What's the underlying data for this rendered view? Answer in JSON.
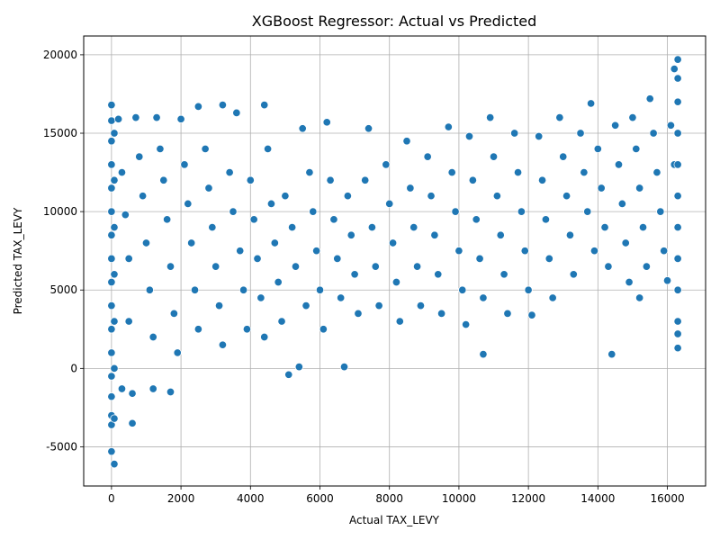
{
  "chart_data": {
    "type": "scatter",
    "title": "XGBoost Regressor: Actual vs Predicted",
    "xlabel": "Actual TAX_LEVY",
    "ylabel": "Predicted TAX_LEVY",
    "xlim": [
      -800,
      17100
    ],
    "ylim": [
      -7500,
      21200
    ],
    "xticks": [
      0,
      2000,
      4000,
      6000,
      8000,
      10000,
      12000,
      14000,
      16000
    ],
    "yticks": [
      -5000,
      0,
      5000,
      10000,
      15000,
      20000
    ],
    "grid": true,
    "marker_color": "#1f77b4",
    "marker_edge": "#ffffff",
    "points": [
      [
        0,
        -5300
      ],
      [
        0,
        -3600
      ],
      [
        0,
        -3000
      ],
      [
        0,
        -1800
      ],
      [
        0,
        -500
      ],
      [
        0,
        1000
      ],
      [
        0,
        2500
      ],
      [
        0,
        4000
      ],
      [
        0,
        5500
      ],
      [
        0,
        7000
      ],
      [
        0,
        8500
      ],
      [
        0,
        10000
      ],
      [
        0,
        11500
      ],
      [
        0,
        13000
      ],
      [
        0,
        14500
      ],
      [
        0,
        15800
      ],
      [
        0,
        16800
      ],
      [
        80,
        -3200
      ],
      [
        80,
        0
      ],
      [
        80,
        3000
      ],
      [
        80,
        6000
      ],
      [
        80,
        9000
      ],
      [
        80,
        12000
      ],
      [
        80,
        15000
      ],
      [
        80,
        -6100
      ],
      [
        300,
        -1300
      ],
      [
        600,
        -3500
      ],
      [
        600,
        -1600
      ],
      [
        1200,
        -1300
      ],
      [
        1700,
        -1500
      ],
      [
        200,
        15900
      ],
      [
        300,
        12500
      ],
      [
        400,
        9800
      ],
      [
        500,
        7000
      ],
      [
        500,
        3000
      ],
      [
        700,
        16000
      ],
      [
        800,
        13500
      ],
      [
        900,
        11000
      ],
      [
        1000,
        8000
      ],
      [
        1100,
        5000
      ],
      [
        1200,
        2000
      ],
      [
        1300,
        16000
      ],
      [
        1400,
        14000
      ],
      [
        1500,
        12000
      ],
      [
        1600,
        9500
      ],
      [
        1700,
        6500
      ],
      [
        1800,
        3500
      ],
      [
        1900,
        1000
      ],
      [
        2000,
        15900
      ],
      [
        2100,
        13000
      ],
      [
        2200,
        10500
      ],
      [
        2300,
        8000
      ],
      [
        2400,
        5000
      ],
      [
        2500,
        2500
      ],
      [
        2500,
        16700
      ],
      [
        2700,
        14000
      ],
      [
        2800,
        11500
      ],
      [
        2900,
        9000
      ],
      [
        3000,
        6500
      ],
      [
        3100,
        4000
      ],
      [
        3200,
        1500
      ],
      [
        3200,
        16800
      ],
      [
        3400,
        12500
      ],
      [
        3500,
        10000
      ],
      [
        3600,
        16300
      ],
      [
        3700,
        7500
      ],
      [
        3800,
        5000
      ],
      [
        3900,
        2500
      ],
      [
        4000,
        12000
      ],
      [
        4100,
        9500
      ],
      [
        4200,
        7000
      ],
      [
        4300,
        4500
      ],
      [
        4400,
        2000
      ],
      [
        4400,
        16800
      ],
      [
        4500,
        14000
      ],
      [
        4600,
        10500
      ],
      [
        4700,
        8000
      ],
      [
        4800,
        5500
      ],
      [
        4900,
        3000
      ],
      [
        5000,
        11000
      ],
      [
        5100,
        -400
      ],
      [
        5200,
        9000
      ],
      [
        5300,
        6500
      ],
      [
        5400,
        100
      ],
      [
        5500,
        15300
      ],
      [
        5600,
        4000
      ],
      [
        5700,
        12500
      ],
      [
        5800,
        10000
      ],
      [
        5900,
        7500
      ],
      [
        6000,
        5000
      ],
      [
        6100,
        2500
      ],
      [
        6200,
        15700
      ],
      [
        6300,
        12000
      ],
      [
        6400,
        9500
      ],
      [
        6500,
        7000
      ],
      [
        6600,
        4500
      ],
      [
        6700,
        100
      ],
      [
        6800,
        11000
      ],
      [
        6900,
        8500
      ],
      [
        7000,
        6000
      ],
      [
        7100,
        3500
      ],
      [
        7300,
        12000
      ],
      [
        7400,
        15300
      ],
      [
        7500,
        9000
      ],
      [
        7600,
        6500
      ],
      [
        7700,
        4000
      ],
      [
        7900,
        13000
      ],
      [
        8000,
        10500
      ],
      [
        8100,
        8000
      ],
      [
        8200,
        5500
      ],
      [
        8300,
        3000
      ],
      [
        8500,
        14500
      ],
      [
        8600,
        11500
      ],
      [
        8700,
        9000
      ],
      [
        8800,
        6500
      ],
      [
        8900,
        4000
      ],
      [
        9100,
        13500
      ],
      [
        9200,
        11000
      ],
      [
        9300,
        8500
      ],
      [
        9400,
        6000
      ],
      [
        9500,
        3500
      ],
      [
        9700,
        15400
      ],
      [
        9800,
        12500
      ],
      [
        9900,
        10000
      ],
      [
        10000,
        7500
      ],
      [
        10100,
        5000
      ],
      [
        10200,
        2800
      ],
      [
        10300,
        14800
      ],
      [
        10400,
        12000
      ],
      [
        10500,
        9500
      ],
      [
        10600,
        7000
      ],
      [
        10700,
        4500
      ],
      [
        10700,
        900
      ],
      [
        10900,
        16000
      ],
      [
        11000,
        13500
      ],
      [
        11100,
        11000
      ],
      [
        11200,
        8500
      ],
      [
        11300,
        6000
      ],
      [
        11400,
        3500
      ],
      [
        11600,
        15000
      ],
      [
        11700,
        12500
      ],
      [
        11800,
        10000
      ],
      [
        11900,
        7500
      ],
      [
        12000,
        5000
      ],
      [
        12100,
        3400
      ],
      [
        12300,
        14800
      ],
      [
        12400,
        12000
      ],
      [
        12500,
        9500
      ],
      [
        12600,
        7000
      ],
      [
        12700,
        4500
      ],
      [
        12900,
        16000
      ],
      [
        13000,
        13500
      ],
      [
        13100,
        11000
      ],
      [
        13200,
        8500
      ],
      [
        13300,
        6000
      ],
      [
        13500,
        15000
      ],
      [
        13600,
        12500
      ],
      [
        13700,
        10000
      ],
      [
        13800,
        16900
      ],
      [
        13900,
        7500
      ],
      [
        14000,
        14000
      ],
      [
        14100,
        11500
      ],
      [
        14200,
        9000
      ],
      [
        14300,
        6500
      ],
      [
        14400,
        900
      ],
      [
        14500,
        15500
      ],
      [
        14600,
        13000
      ],
      [
        14700,
        10500
      ],
      [
        14800,
        8000
      ],
      [
        14900,
        5500
      ],
      [
        15000,
        16000
      ],
      [
        15100,
        14000
      ],
      [
        15200,
        11500
      ],
      [
        15200,
        4500
      ],
      [
        15300,
        9000
      ],
      [
        15400,
        6500
      ],
      [
        15500,
        17200
      ],
      [
        15600,
        15000
      ],
      [
        15700,
        12500
      ],
      [
        15800,
        10000
      ],
      [
        15900,
        7500
      ],
      [
        16000,
        5600
      ],
      [
        16100,
        15500
      ],
      [
        16200,
        13000
      ],
      [
        16200,
        19100
      ],
      [
        16300,
        19700
      ],
      [
        16300,
        18500
      ],
      [
        16300,
        17000
      ],
      [
        16300,
        15000
      ],
      [
        16300,
        13000
      ],
      [
        16300,
        11000
      ],
      [
        16300,
        9000
      ],
      [
        16300,
        7000
      ],
      [
        16300,
        5000
      ],
      [
        16300,
        3000
      ],
      [
        16300,
        2200
      ],
      [
        16300,
        1300
      ]
    ]
  }
}
